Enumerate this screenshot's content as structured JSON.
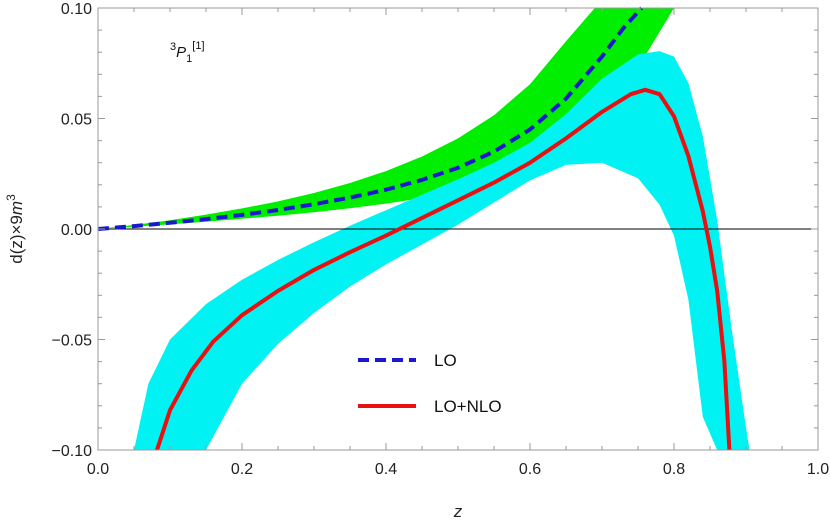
{
  "chart_data": {
    "type": "line",
    "annotation": {
      "base": "P",
      "pre_sup": "3",
      "sub": "1",
      "post_sup": "[1]"
    },
    "xlabel": "z",
    "ylabel": {
      "pre": "d(z)×9",
      "m": "m",
      "sup": "3"
    },
    "xlim": [
      0.0,
      1.0
    ],
    "ylim": [
      -0.1,
      0.1
    ],
    "xticks": [
      "0.0",
      "0.2",
      "0.4",
      "0.6",
      "0.8",
      "1.0"
    ],
    "yticks": [
      "0.10",
      "0.05",
      "0.00",
      "−0.05",
      "−0.10"
    ],
    "legend_position": "bottom-center",
    "series": [
      {
        "name": "LO",
        "style": "dashed",
        "color": "#1a1acc",
        "x": [
          0.0,
          0.05,
          0.1,
          0.15,
          0.2,
          0.25,
          0.3,
          0.35,
          0.4,
          0.45,
          0.5,
          0.55,
          0.6,
          0.65,
          0.7,
          0.73,
          0.755
        ],
        "y": [
          0.0,
          0.0013,
          0.0028,
          0.0045,
          0.0064,
          0.0086,
          0.0112,
          0.0142,
          0.0178,
          0.0222,
          0.0277,
          0.035,
          0.045,
          0.059,
          0.078,
          0.091,
          0.1
        ]
      },
      {
        "name": "LO+NLO",
        "style": "solid",
        "color": "#e81111",
        "x": [
          0.082,
          0.1,
          0.13,
          0.16,
          0.2,
          0.25,
          0.3,
          0.35,
          0.4,
          0.45,
          0.5,
          0.55,
          0.6,
          0.65,
          0.7,
          0.74,
          0.76,
          0.78,
          0.8,
          0.82,
          0.84,
          0.85,
          0.86,
          0.87,
          0.877
        ],
        "y": [
          -0.1,
          -0.082,
          -0.064,
          -0.051,
          -0.039,
          -0.028,
          -0.0185,
          -0.0105,
          -0.003,
          0.005,
          0.013,
          0.021,
          0.03,
          0.041,
          0.053,
          0.061,
          0.063,
          0.061,
          0.051,
          0.033,
          0.008,
          -0.008,
          -0.028,
          -0.06,
          -0.1
        ]
      }
    ],
    "bands": [
      {
        "series": "LO",
        "color": "#00ee00",
        "x": [
          0.0,
          0.05,
          0.1,
          0.15,
          0.2,
          0.25,
          0.3,
          0.35,
          0.4,
          0.45,
          0.5,
          0.55,
          0.6,
          0.65,
          0.69,
          0.7,
          0.75,
          0.8
        ],
        "upper": [
          0.0,
          0.0018,
          0.004,
          0.0065,
          0.0093,
          0.0125,
          0.0163,
          0.0208,
          0.0262,
          0.0328,
          0.041,
          0.0515,
          0.0655,
          0.085,
          0.1,
          0.1,
          0.1,
          0.1
        ],
        "lower": [
          0.0,
          0.001,
          0.0021,
          0.0033,
          0.0046,
          0.006,
          0.0076,
          0.0094,
          0.0115,
          0.014,
          0.0172,
          0.0215,
          0.0275,
          0.036,
          0.047,
          0.0505,
          0.073,
          0.1
        ]
      },
      {
        "series": "LO+NLO",
        "color": "#00f2f2",
        "x": [
          0.05,
          0.07,
          0.1,
          0.15,
          0.2,
          0.25,
          0.3,
          0.35,
          0.4,
          0.45,
          0.5,
          0.55,
          0.6,
          0.65,
          0.7,
          0.75,
          0.78,
          0.8,
          0.82,
          0.84,
          0.86,
          0.88,
          0.9,
          0.905
        ],
        "upper": [
          -0.1,
          -0.07,
          -0.05,
          -0.034,
          -0.023,
          -0.014,
          -0.006,
          0.0015,
          0.0085,
          0.0155,
          0.0225,
          0.03,
          0.039,
          0.052,
          0.068,
          0.079,
          0.0805,
          0.078,
          0.066,
          0.042,
          0.004,
          -0.045,
          -0.09,
          -0.1
        ],
        "lower": [
          null,
          null,
          null,
          -0.1,
          -0.07,
          -0.052,
          -0.038,
          -0.026,
          -0.016,
          -0.007,
          0.002,
          0.012,
          0.022,
          0.029,
          0.03,
          0.023,
          0.011,
          -0.003,
          -0.032,
          -0.085,
          -0.1,
          null,
          null,
          null
        ]
      }
    ]
  }
}
